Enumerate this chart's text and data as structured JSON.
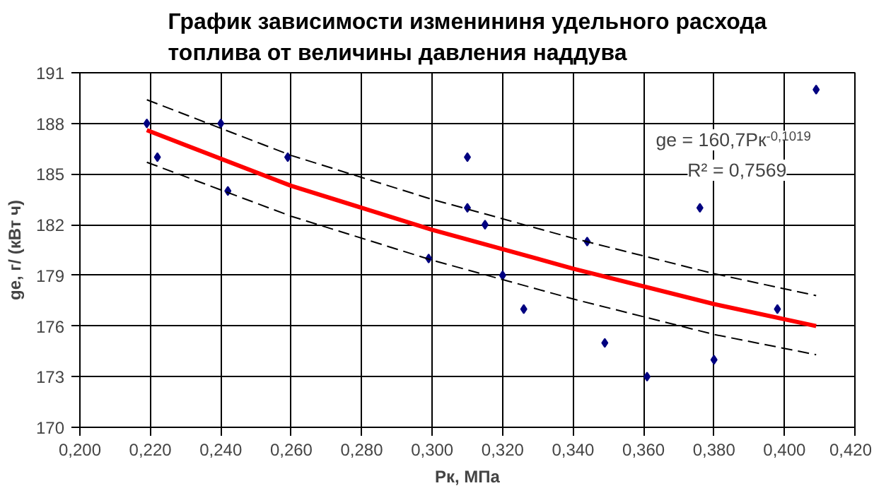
{
  "chart_data": {
    "type": "scatter",
    "title": "График зависимости изменининя удельного расхода\nтоплива от величины давления наддува",
    "xlabel": "Pк, МПа",
    "ylabel": "ge, г/ (кВт ч)",
    "xlim": [
      0.2,
      0.42
    ],
    "ylim": [
      170,
      191
    ],
    "xticks": [
      {
        "value": 0.2,
        "label": "0,200"
      },
      {
        "value": 0.22,
        "label": "0,220"
      },
      {
        "value": 0.24,
        "label": "0,240"
      },
      {
        "value": 0.26,
        "label": "0,260"
      },
      {
        "value": 0.28,
        "label": "0,280"
      },
      {
        "value": 0.3,
        "label": "0,300"
      },
      {
        "value": 0.32,
        "label": "0,320"
      },
      {
        "value": 0.34,
        "label": "0,340"
      },
      {
        "value": 0.36,
        "label": "0,360"
      },
      {
        "value": 0.38,
        "label": "0,380"
      },
      {
        "value": 0.4,
        "label": "0,400"
      },
      {
        "value": 0.42,
        "label": "0,420"
      }
    ],
    "yticks": [
      170,
      173,
      176,
      179,
      182,
      185,
      188,
      191
    ],
    "grid": true,
    "marker": "diamond",
    "series": [
      {
        "color": "#000080",
        "x": [
          0.219,
          0.222,
          0.24,
          0.242,
          0.259,
          0.299,
          0.31,
          0.31,
          0.315,
          0.32,
          0.326,
          0.344,
          0.349,
          0.361,
          0.376,
          0.38,
          0.398,
          0.409
        ],
        "values": [
          188,
          186,
          188,
          184,
          186,
          180,
          186,
          183,
          182,
          179,
          177,
          181,
          175,
          173,
          183,
          174,
          177,
          190
        ]
      },
      {
        "type": "line",
        "marker": "none",
        "color": "#ff0000",
        "x": [
          0.219,
          0.26,
          0.3,
          0.34,
          0.38,
          0.409
        ],
        "values": [
          187.6,
          184.3,
          181.7,
          179.4,
          177.3,
          176.0
        ]
      },
      {
        "type": "line",
        "marker": "none",
        "line_style": "dashed",
        "color": "#000000",
        "x": [
          0.219,
          0.26,
          0.3,
          0.34,
          0.38,
          0.409
        ],
        "values": [
          189.4,
          186.1,
          183.5,
          181.2,
          179.1,
          177.8
        ]
      },
      {
        "type": "line",
        "marker": "none",
        "line_style": "dashed",
        "color": "#000000",
        "x": [
          0.219,
          0.26,
          0.3,
          0.34,
          0.38,
          0.409
        ],
        "values": [
          185.7,
          182.5,
          179.9,
          177.6,
          175.5,
          174.3
        ]
      }
    ],
    "annotations": [
      "ge = 160,7Pк$^{-0,1019}$",
      "R² = 0,7569"
    ]
  }
}
